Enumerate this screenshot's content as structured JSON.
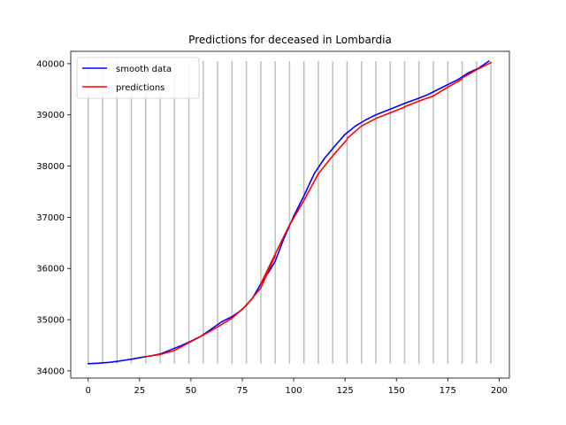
{
  "chart_data": {
    "type": "line",
    "title": "Predictions for deceased in Lombardia",
    "xlabel": "",
    "ylabel": "",
    "xlim": [
      -8.5,
      205
    ],
    "ylim": [
      33860,
      40240
    ],
    "x_ticks": [
      0,
      25,
      50,
      75,
      100,
      125,
      150,
      175,
      200
    ],
    "y_ticks": [
      34000,
      35000,
      36000,
      37000,
      38000,
      39000,
      40000
    ],
    "grid": false,
    "legend_position": "upper left",
    "vertical_markers": {
      "color": "#bfbfbf",
      "x": [
        0,
        7,
        14,
        21,
        28,
        35,
        42,
        49,
        56,
        63,
        70,
        77,
        84,
        91,
        98,
        105,
        112,
        119,
        126,
        133,
        140,
        147,
        154,
        161,
        168,
        175,
        182,
        189,
        196
      ],
      "y_range": [
        34140,
        40050
      ]
    },
    "series": [
      {
        "name": "smooth data",
        "color": "#0000ff",
        "x": [
          0,
          5,
          10,
          14,
          18,
          22,
          26,
          30,
          35,
          40,
          45,
          50,
          55,
          60,
          65,
          70,
          75,
          80,
          84,
          88,
          91,
          95,
          100,
          105,
          110,
          115,
          120,
          125,
          130,
          135,
          140,
          145,
          150,
          155,
          160,
          165,
          170,
          175,
          180,
          185,
          190,
          195
        ],
        "values": [
          34140,
          34150,
          34165,
          34185,
          34210,
          34235,
          34265,
          34290,
          34330,
          34410,
          34490,
          34580,
          34680,
          34820,
          34960,
          35060,
          35200,
          35420,
          35700,
          35940,
          36140,
          36560,
          37020,
          37420,
          37850,
          38150,
          38390,
          38620,
          38780,
          38900,
          39000,
          39080,
          39160,
          39240,
          39310,
          39390,
          39490,
          39590,
          39690,
          39820,
          39910,
          40050
        ]
      },
      {
        "name": "predictions",
        "color": "#ff0000",
        "segments": [
          {
            "x": [
              28,
              35,
              42,
              49,
              56
            ],
            "values": [
              34280,
              34320,
              34400,
              34550,
              34700
            ]
          },
          {
            "x": [
              56,
              63,
              70
            ],
            "values": [
              34700,
              34860,
              35030
            ]
          },
          {
            "x": [
              70,
              77,
              84,
              91
            ],
            "values": [
              35030,
              35280,
              35620,
              36250
            ]
          },
          {
            "x": [
              84,
              91,
              98
            ],
            "values": [
              35700,
              36280,
              36850
            ]
          },
          {
            "x": [
              98,
              105,
              112,
              119,
              126
            ],
            "values": [
              36850,
              37330,
              37850,
              38200,
              38520
            ]
          },
          {
            "x": [
              126,
              133,
              140,
              147,
              154
            ],
            "values": [
              38540,
              38780,
              38930,
              39040,
              39150
            ]
          },
          {
            "x": [
              154,
              161,
              168,
              175,
              182
            ],
            "values": [
              39160,
              39270,
              39370,
              39540,
              39700
            ]
          },
          {
            "x": [
              182,
              189,
              196
            ],
            "values": [
              39720,
              39880,
              40020
            ]
          }
        ]
      }
    ]
  }
}
